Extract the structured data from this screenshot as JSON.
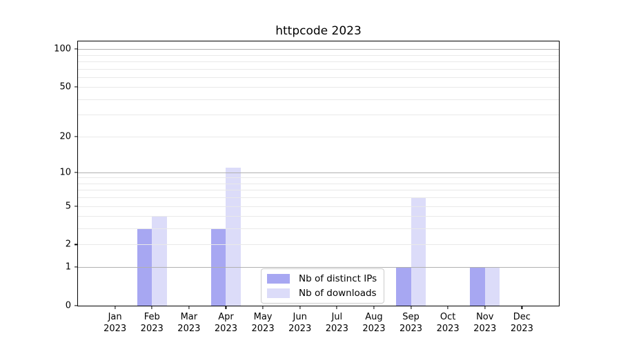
{
  "chart_data": {
    "type": "bar",
    "title": "httpcode 2023",
    "categories": [
      "Jan 2023",
      "Feb 2023",
      "Mar 2023",
      "Apr 2023",
      "May 2023",
      "Jun 2023",
      "Jul 2023",
      "Aug 2023",
      "Sep 2023",
      "Oct 2023",
      "Nov 2023",
      "Dec 2023"
    ],
    "series": [
      {
        "name": "Nb of distinct IPs",
        "color": "#a7a7f2",
        "values": [
          0,
          3,
          0,
          3,
          0,
          0,
          0,
          0,
          1,
          0,
          1,
          0
        ]
      },
      {
        "name": "Nb of downloads",
        "color": "#dcdcf9",
        "values": [
          0,
          4,
          0,
          11,
          0,
          0,
          0,
          0,
          6,
          0,
          1,
          0
        ]
      }
    ],
    "xlabel": "",
    "ylabel": "",
    "yscale": "log1p",
    "ylim": [
      0,
      115
    ],
    "y_tick_values": [
      100,
      50,
      20,
      10,
      5,
      2,
      1,
      0
    ],
    "grid": {
      "on": true,
      "major": [
        1,
        10,
        100
      ],
      "minor": [
        2,
        3,
        4,
        5,
        6,
        7,
        8,
        9,
        20,
        30,
        40,
        50,
        60,
        70,
        80,
        90
      ]
    },
    "legend": {
      "position": "lower-center",
      "items": [
        "Nb of distinct IPs",
        "Nb of downloads"
      ]
    }
  },
  "colors": {
    "background": "#ffffff",
    "axis": "#000000",
    "grid_major": "#b0b0b0",
    "grid_minor": "#e9e9e9",
    "legend_border": "#cccccc"
  }
}
